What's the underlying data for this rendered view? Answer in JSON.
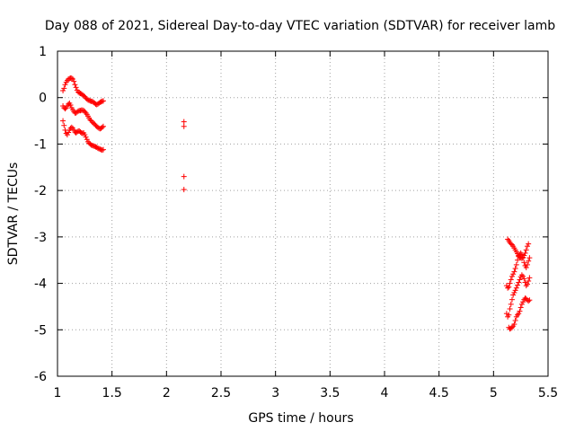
{
  "chart_data": {
    "type": "scatter",
    "title": "Day 088 of 2021, Sidereal Day-to-day VTEC variation (SDTVAR) for receiver lamb",
    "xlabel": "GPS time / hours",
    "ylabel": "SDTVAR / TECUs",
    "xlim": [
      1,
      5.5
    ],
    "ylim": [
      -6,
      1
    ],
    "xticks": [
      1,
      1.5,
      2,
      2.5,
      3,
      3.5,
      4,
      4.5,
      5,
      5.5
    ],
    "xtick_labels": [
      "1",
      "1.5",
      "2",
      "2.5",
      "3",
      "3.5",
      "4",
      "4.5",
      "5",
      "5.5"
    ],
    "yticks": [
      -6,
      -5,
      -4,
      -3,
      -2,
      -1,
      0,
      1
    ],
    "ytick_labels": [
      "-6",
      "-5",
      "-4",
      "-3",
      "-2",
      "-1",
      "0",
      "1"
    ],
    "grid": true,
    "marker": "plus",
    "color": "#ff0000",
    "series": [
      {
        "points": [
          [
            1.05,
            0.15
          ],
          [
            1.06,
            0.2
          ],
          [
            1.07,
            0.28
          ],
          [
            1.08,
            0.33
          ],
          [
            1.09,
            0.37
          ],
          [
            1.1,
            0.4
          ],
          [
            1.11,
            0.41
          ],
          [
            1.12,
            0.42
          ],
          [
            1.13,
            0.42
          ],
          [
            1.14,
            0.4
          ],
          [
            1.15,
            0.35
          ],
          [
            1.16,
            0.28
          ],
          [
            1.17,
            0.22
          ],
          [
            1.18,
            0.16
          ],
          [
            1.19,
            0.12
          ],
          [
            1.2,
            0.1
          ],
          [
            1.21,
            0.09
          ],
          [
            1.22,
            0.08
          ],
          [
            1.23,
            0.06
          ],
          [
            1.24,
            0.04
          ],
          [
            1.25,
            0.02
          ],
          [
            1.26,
            -0.01
          ],
          [
            1.27,
            -0.03
          ],
          [
            1.28,
            -0.05
          ],
          [
            1.29,
            -0.06
          ],
          [
            1.3,
            -0.07
          ],
          [
            1.31,
            -0.08
          ],
          [
            1.32,
            -0.08
          ],
          [
            1.33,
            -0.1
          ],
          [
            1.34,
            -0.12
          ],
          [
            1.35,
            -0.14
          ],
          [
            1.36,
            -0.15
          ],
          [
            1.37,
            -0.14
          ],
          [
            1.38,
            -0.12
          ],
          [
            1.39,
            -0.1
          ],
          [
            1.4,
            -0.09
          ],
          [
            1.41,
            -0.08
          ],
          [
            1.42,
            -0.07
          ],
          [
            1.05,
            -0.18
          ],
          [
            1.06,
            -0.22
          ],
          [
            1.07,
            -0.24
          ],
          [
            1.08,
            -0.22
          ],
          [
            1.09,
            -0.18
          ],
          [
            1.1,
            -0.14
          ],
          [
            1.11,
            -0.12
          ],
          [
            1.12,
            -0.16
          ],
          [
            1.13,
            -0.22
          ],
          [
            1.14,
            -0.26
          ],
          [
            1.15,
            -0.3
          ],
          [
            1.16,
            -0.33
          ],
          [
            1.17,
            -0.33
          ],
          [
            1.18,
            -0.31
          ],
          [
            1.19,
            -0.29
          ],
          [
            1.2,
            -0.28
          ],
          [
            1.21,
            -0.28
          ],
          [
            1.22,
            -0.27
          ],
          [
            1.23,
            -0.27
          ],
          [
            1.24,
            -0.28
          ],
          [
            1.25,
            -0.3
          ],
          [
            1.26,
            -0.33
          ],
          [
            1.27,
            -0.36
          ],
          [
            1.28,
            -0.4
          ],
          [
            1.29,
            -0.44
          ],
          [
            1.3,
            -0.48
          ],
          [
            1.31,
            -0.5
          ],
          [
            1.32,
            -0.53
          ],
          [
            1.33,
            -0.55
          ],
          [
            1.34,
            -0.57
          ],
          [
            1.35,
            -0.6
          ],
          [
            1.36,
            -0.62
          ],
          [
            1.37,
            -0.64
          ],
          [
            1.38,
            -0.66
          ],
          [
            1.39,
            -0.67
          ],
          [
            1.4,
            -0.66
          ],
          [
            1.41,
            -0.64
          ],
          [
            1.42,
            -0.62
          ],
          [
            1.05,
            -0.5
          ],
          [
            1.06,
            -0.6
          ],
          [
            1.07,
            -0.7
          ],
          [
            1.08,
            -0.77
          ],
          [
            1.09,
            -0.8
          ],
          [
            1.1,
            -0.75
          ],
          [
            1.11,
            -0.7
          ],
          [
            1.12,
            -0.66
          ],
          [
            1.13,
            -0.64
          ],
          [
            1.14,
            -0.66
          ],
          [
            1.15,
            -0.7
          ],
          [
            1.16,
            -0.74
          ],
          [
            1.17,
            -0.76
          ],
          [
            1.18,
            -0.74
          ],
          [
            1.19,
            -0.72
          ],
          [
            1.2,
            -0.72
          ],
          [
            1.21,
            -0.74
          ],
          [
            1.22,
            -0.76
          ],
          [
            1.23,
            -0.77
          ],
          [
            1.24,
            -0.76
          ],
          [
            1.25,
            -0.8
          ],
          [
            1.26,
            -0.85
          ],
          [
            1.27,
            -0.9
          ],
          [
            1.28,
            -0.95
          ],
          [
            1.29,
            -0.98
          ],
          [
            1.3,
            -1.0
          ],
          [
            1.31,
            -1.02
          ],
          [
            1.32,
            -1.03
          ],
          [
            1.33,
            -1.04
          ],
          [
            1.34,
            -1.05
          ],
          [
            1.35,
            -1.06
          ],
          [
            1.36,
            -1.07
          ],
          [
            1.37,
            -1.09
          ],
          [
            1.38,
            -1.1
          ],
          [
            1.39,
            -1.11
          ],
          [
            1.4,
            -1.12
          ],
          [
            1.41,
            -1.13
          ],
          [
            1.42,
            -1.12
          ],
          [
            2.16,
            -0.52
          ],
          [
            2.16,
            -0.62
          ],
          [
            2.16,
            -1.7
          ],
          [
            2.16,
            -1.98
          ],
          [
            5.13,
            -3.05
          ],
          [
            5.14,
            -3.08
          ],
          [
            5.15,
            -3.12
          ],
          [
            5.16,
            -3.15
          ],
          [
            5.17,
            -3.17
          ],
          [
            5.18,
            -3.2
          ],
          [
            5.19,
            -3.24
          ],
          [
            5.2,
            -3.28
          ],
          [
            5.21,
            -3.32
          ],
          [
            5.22,
            -3.36
          ],
          [
            5.23,
            -3.4
          ],
          [
            5.24,
            -3.43
          ],
          [
            5.25,
            -3.45
          ],
          [
            5.26,
            -3.46
          ],
          [
            5.27,
            -3.44
          ],
          [
            5.28,
            -3.4
          ],
          [
            5.29,
            -3.35
          ],
          [
            5.3,
            -3.28
          ],
          [
            5.31,
            -3.2
          ],
          [
            5.32,
            -3.15
          ],
          [
            5.12,
            -4.05
          ],
          [
            5.13,
            -4.1
          ],
          [
            5.14,
            -4.08
          ],
          [
            5.15,
            -4.0
          ],
          [
            5.16,
            -3.92
          ],
          [
            5.17,
            -3.85
          ],
          [
            5.18,
            -3.8
          ],
          [
            5.19,
            -3.75
          ],
          [
            5.2,
            -3.68
          ],
          [
            5.21,
            -3.6
          ],
          [
            5.22,
            -3.5
          ],
          [
            5.23,
            -3.42
          ],
          [
            5.24,
            -3.38
          ],
          [
            5.25,
            -3.35
          ],
          [
            5.26,
            -3.38
          ],
          [
            5.27,
            -3.45
          ],
          [
            5.28,
            -3.55
          ],
          [
            5.29,
            -3.62
          ],
          [
            5.3,
            -3.66
          ],
          [
            5.31,
            -3.6
          ],
          [
            5.32,
            -3.52
          ],
          [
            5.33,
            -3.45
          ],
          [
            5.12,
            -4.65
          ],
          [
            5.13,
            -4.72
          ],
          [
            5.14,
            -4.68
          ],
          [
            5.15,
            -4.55
          ],
          [
            5.16,
            -4.45
          ],
          [
            5.17,
            -4.35
          ],
          [
            5.18,
            -4.25
          ],
          [
            5.19,
            -4.2
          ],
          [
            5.2,
            -4.15
          ],
          [
            5.21,
            -4.1
          ],
          [
            5.22,
            -4.04
          ],
          [
            5.23,
            -3.98
          ],
          [
            5.24,
            -3.92
          ],
          [
            5.25,
            -3.86
          ],
          [
            5.26,
            -3.82
          ],
          [
            5.27,
            -3.85
          ],
          [
            5.28,
            -3.9
          ],
          [
            5.29,
            -3.98
          ],
          [
            5.3,
            -4.05
          ],
          [
            5.31,
            -4.02
          ],
          [
            5.32,
            -3.95
          ],
          [
            5.33,
            -3.88
          ],
          [
            5.14,
            -4.95
          ],
          [
            5.15,
            -4.98
          ],
          [
            5.16,
            -4.97
          ],
          [
            5.17,
            -4.95
          ],
          [
            5.18,
            -4.92
          ],
          [
            5.19,
            -4.88
          ],
          [
            5.2,
            -4.8
          ],
          [
            5.21,
            -4.72
          ],
          [
            5.22,
            -4.68
          ],
          [
            5.23,
            -4.65
          ],
          [
            5.24,
            -4.6
          ],
          [
            5.25,
            -4.52
          ],
          [
            5.26,
            -4.45
          ],
          [
            5.27,
            -4.4
          ],
          [
            5.28,
            -4.35
          ],
          [
            5.29,
            -4.32
          ],
          [
            5.3,
            -4.33
          ],
          [
            5.31,
            -4.36
          ],
          [
            5.32,
            -4.38
          ],
          [
            5.33,
            -4.36
          ]
        ]
      }
    ]
  }
}
